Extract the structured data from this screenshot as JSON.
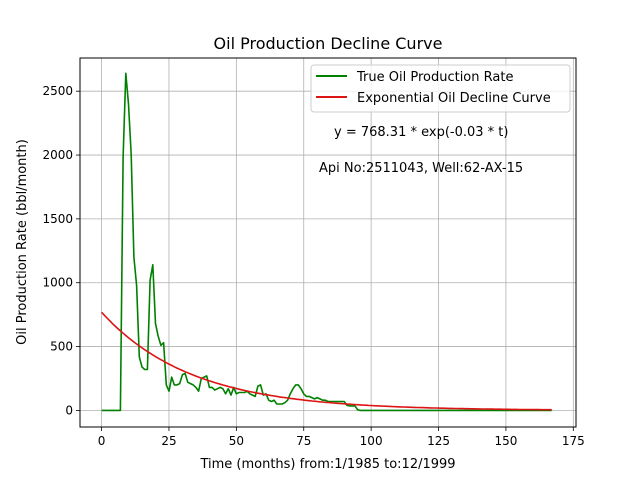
{
  "chart_data": {
    "type": "line",
    "title": "Oil Production Decline Curve",
    "xlabel": "Time (months) from:1/1985 to:12/1999",
    "ylabel": "Oil Production Rate (bbl/month)",
    "xlim": [
      -8,
      176
    ],
    "ylim": [
      -130,
      2760
    ],
    "xticks": [
      0,
      25,
      50,
      75,
      100,
      125,
      150,
      175
    ],
    "yticks": [
      0,
      500,
      1000,
      1500,
      2000,
      2500
    ],
    "grid": true,
    "legend_position": "top-right",
    "annotations": [
      {
        "text": "y = 768.31 * exp(-0.03 * t)"
      },
      {
        "text": "Api No:2511043, Well:62-AX-15"
      }
    ],
    "series": [
      {
        "name": "True Oil Production Rate",
        "color": "#008000",
        "points": [
          [
            0,
            0
          ],
          [
            2,
            0
          ],
          [
            4,
            0
          ],
          [
            6,
            0
          ],
          [
            7,
            0
          ],
          [
            8,
            1980
          ],
          [
            9,
            2640
          ],
          [
            10,
            2400
          ],
          [
            11,
            2000
          ],
          [
            12,
            1200
          ],
          [
            13,
            980
          ],
          [
            14,
            420
          ],
          [
            15,
            340
          ],
          [
            16,
            320
          ],
          [
            17,
            320
          ],
          [
            18,
            1020
          ],
          [
            19,
            1140
          ],
          [
            20,
            680
          ],
          [
            21,
            580
          ],
          [
            22,
            510
          ],
          [
            23,
            530
          ],
          [
            24,
            200
          ],
          [
            25,
            150
          ],
          [
            26,
            260
          ],
          [
            27,
            200
          ],
          [
            28,
            200
          ],
          [
            29,
            210
          ],
          [
            30,
            280
          ],
          [
            31,
            290
          ],
          [
            32,
            220
          ],
          [
            33,
            210
          ],
          [
            34,
            200
          ],
          [
            35,
            180
          ],
          [
            36,
            150
          ],
          [
            37,
            250
          ],
          [
            38,
            260
          ],
          [
            39,
            270
          ],
          [
            40,
            180
          ],
          [
            41,
            180
          ],
          [
            42,
            160
          ],
          [
            43,
            170
          ],
          [
            44,
            180
          ],
          [
            45,
            170
          ],
          [
            46,
            130
          ],
          [
            47,
            170
          ],
          [
            48,
            120
          ],
          [
            49,
            180
          ],
          [
            50,
            130
          ],
          [
            51,
            140
          ],
          [
            52,
            140
          ],
          [
            53,
            140
          ],
          [
            54,
            150
          ],
          [
            55,
            130
          ],
          [
            56,
            120
          ],
          [
            57,
            110
          ],
          [
            58,
            190
          ],
          [
            59,
            200
          ],
          [
            60,
            120
          ],
          [
            61,
            130
          ],
          [
            62,
            80
          ],
          [
            63,
            70
          ],
          [
            64,
            80
          ],
          [
            65,
            50
          ],
          [
            66,
            50
          ],
          [
            67,
            50
          ],
          [
            68,
            60
          ],
          [
            69,
            80
          ],
          [
            70,
            130
          ],
          [
            71,
            170
          ],
          [
            72,
            200
          ],
          [
            73,
            200
          ],
          [
            74,
            170
          ],
          [
            75,
            130
          ],
          [
            76,
            110
          ],
          [
            77,
            110
          ],
          [
            78,
            100
          ],
          [
            79,
            90
          ],
          [
            80,
            100
          ],
          [
            81,
            90
          ],
          [
            82,
            80
          ],
          [
            83,
            80
          ],
          [
            84,
            70
          ],
          [
            85,
            70
          ],
          [
            86,
            70
          ],
          [
            87,
            70
          ],
          [
            88,
            70
          ],
          [
            89,
            70
          ],
          [
            90,
            70
          ],
          [
            91,
            40
          ],
          [
            92,
            35
          ],
          [
            93,
            35
          ],
          [
            94,
            35
          ],
          [
            95,
            5
          ],
          [
            96,
            0
          ],
          [
            97,
            0
          ],
          [
            100,
            0
          ],
          [
            110,
            0
          ],
          [
            120,
            0
          ],
          [
            130,
            0
          ],
          [
            140,
            0
          ],
          [
            150,
            0
          ],
          [
            160,
            0
          ],
          [
            167,
            0
          ]
        ]
      },
      {
        "name": "Exponential Oil Decline Curve",
        "color": "#dc1414",
        "equation": {
          "a": 768.31,
          "b": -0.03
        },
        "x_range": [
          0,
          167
        ]
      }
    ]
  }
}
